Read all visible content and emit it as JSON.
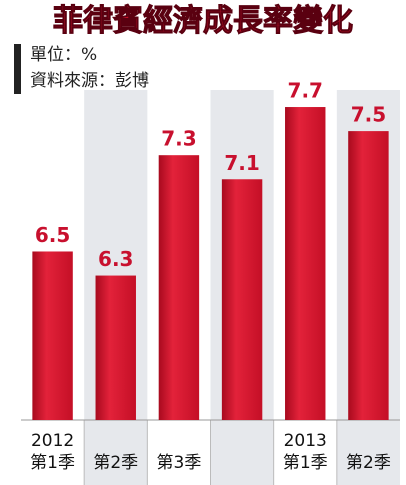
{
  "chart_data": {
    "type": "bar",
    "title": "菲律賓經濟成長率變化",
    "subtitle": [
      "單位：%",
      "資料來源：彭博"
    ],
    "categories": [
      "2012\n第1季",
      "第2季",
      "第3季",
      null,
      "2013\n第1季",
      "第2季"
    ],
    "values": [
      6.5,
      6.3,
      7.3,
      7.1,
      7.7,
      7.5
    ],
    "color": "#d6122c",
    "label_color": "#c8102e",
    "ylim": [
      5.1,
      7.8
    ]
  }
}
